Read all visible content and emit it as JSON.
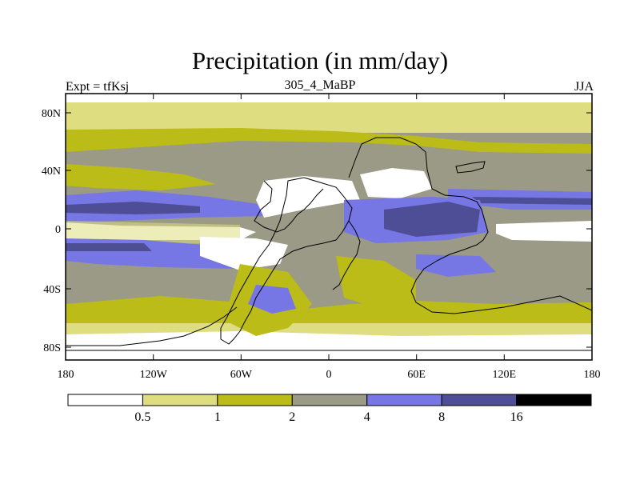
{
  "title": "Precipitation (in mm/day)",
  "left_label": "Expt = tfKsj",
  "center_label": "305_4_MaBP",
  "right_label": "JJA",
  "lat_ticks": [
    "80N",
    "40N",
    "0",
    "40S",
    "80S"
  ],
  "lon_ticks": [
    "180",
    "120W",
    "60W",
    "0",
    "60E",
    "120E",
    "180"
  ],
  "colorbar": {
    "levels": [
      "0.5",
      "1",
      "2",
      "4",
      "8",
      "16"
    ],
    "colors": [
      "#ffffff",
      "#dede80",
      "#bcbc18",
      "#9a9a86",
      "#7676e4",
      "#4e4e96",
      "#000000"
    ]
  },
  "map_colors": {
    "white": "#ffffff",
    "light_yellow": "#dede80",
    "olive": "#bcbc18",
    "gray": "#9a9a86",
    "blue": "#7676e4",
    "dark_blue": "#4e4e96",
    "outline": "#000000"
  }
}
